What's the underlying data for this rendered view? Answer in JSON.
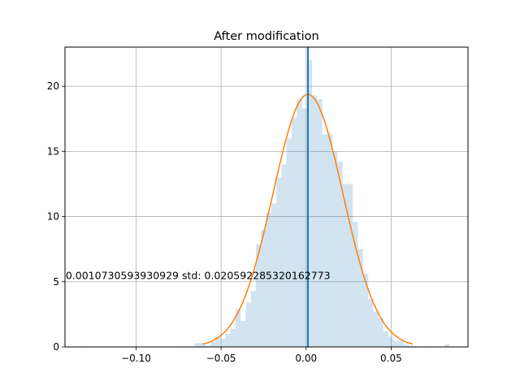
{
  "chart_data": {
    "type": "bar",
    "title": "After modification",
    "xlabel": "",
    "ylabel": "",
    "xlim": [
      -0.1418,
      0.0952
    ],
    "ylim": [
      0,
      23
    ],
    "grid": true,
    "xticks": [
      -0.1,
      -0.05,
      0.0,
      0.05
    ],
    "xtick_labels": [
      "−0.10",
      "−0.05",
      "0.00",
      "0.05"
    ],
    "yticks": [
      0,
      5,
      10,
      15,
      20
    ],
    "ytick_labels": [
      "0",
      "5",
      "10",
      "15",
      "20"
    ],
    "histogram": {
      "color": "#1f77b4",
      "alpha": 0.2,
      "bins": [
        {
          "x": -0.1305,
          "y": 0.05
        },
        {
          "x": -0.075,
          "y": 0.05
        },
        {
          "x": -0.07,
          "y": 0.05
        },
        {
          "x": -0.064,
          "y": 0.3
        },
        {
          "x": -0.061,
          "y": 0.3
        },
        {
          "x": -0.058,
          "y": 0.1
        },
        {
          "x": -0.055,
          "y": 0.4
        },
        {
          "x": -0.052,
          "y": 0.8
        },
        {
          "x": -0.049,
          "y": 0.6
        },
        {
          "x": -0.046,
          "y": 1.0
        },
        {
          "x": -0.043,
          "y": 1.4
        },
        {
          "x": -0.04,
          "y": 2.9
        },
        {
          "x": -0.037,
          "y": 2.0
        },
        {
          "x": -0.034,
          "y": 3.4
        },
        {
          "x": -0.031,
          "y": 4.3
        },
        {
          "x": -0.028,
          "y": 7.9
        },
        {
          "x": -0.025,
          "y": 9.0
        },
        {
          "x": -0.022,
          "y": 10.3
        },
        {
          "x": -0.019,
          "y": 11.0
        },
        {
          "x": -0.016,
          "y": 13.0
        },
        {
          "x": -0.013,
          "y": 14.0
        },
        {
          "x": -0.01,
          "y": 16.0
        },
        {
          "x": -0.007,
          "y": 17.6
        },
        {
          "x": -0.004,
          "y": 19.0
        },
        {
          "x": -0.001,
          "y": 18.3
        },
        {
          "x": 0.002,
          "y": 22.0
        },
        {
          "x": 0.005,
          "y": 19.3
        },
        {
          "x": 0.008,
          "y": 19.0
        },
        {
          "x": 0.011,
          "y": 16.3
        },
        {
          "x": 0.014,
          "y": 16.3
        },
        {
          "x": 0.017,
          "y": 15.0
        },
        {
          "x": 0.02,
          "y": 14.2
        },
        {
          "x": 0.023,
          "y": 12.5
        },
        {
          "x": 0.026,
          "y": 12.5
        },
        {
          "x": 0.029,
          "y": 9.6
        },
        {
          "x": 0.032,
          "y": 7.5
        },
        {
          "x": 0.035,
          "y": 5.6
        },
        {
          "x": 0.038,
          "y": 3.7
        },
        {
          "x": 0.041,
          "y": 2.7
        },
        {
          "x": 0.044,
          "y": 2.2
        },
        {
          "x": 0.047,
          "y": 1.2
        },
        {
          "x": 0.05,
          "y": 0.8
        },
        {
          "x": 0.053,
          "y": 0.5
        },
        {
          "x": 0.056,
          "y": 0.5
        },
        {
          "x": 0.059,
          "y": 0.2
        },
        {
          "x": 0.062,
          "y": 0.1
        },
        {
          "x": 0.071,
          "y": 0.05
        },
        {
          "x": 0.083,
          "y": 0.2
        }
      ],
      "bin_width": 0.003
    },
    "fit_curve": {
      "type": "normal_pdf",
      "mean": 0.0010730593930929,
      "std": 0.020592285320162773,
      "x_range": [
        -0.0608,
        0.0627
      ],
      "color": "#ff7f0e"
    },
    "mean_line": {
      "x": 0.0010730593930929,
      "color": "#1f77b4"
    },
    "annotation": {
      "text": "0.0010730593930929 std: 0.020592285320162773",
      "x": -0.1414,
      "y": 5.2
    }
  }
}
